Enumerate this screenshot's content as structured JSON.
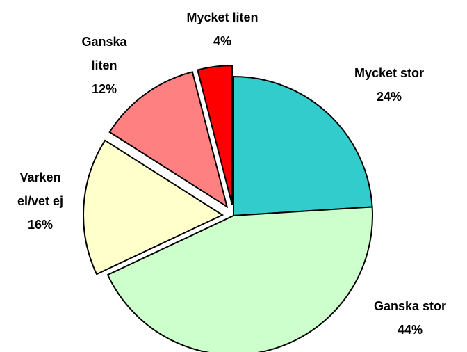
{
  "chart_data": {
    "type": "pie",
    "categories": [
      "Mycket stor",
      "Ganska stor",
      "Varken el/vet ej",
      "Ganska liten",
      "Mycket liten"
    ],
    "values": [
      24,
      44,
      16,
      12,
      4
    ],
    "value_labels": [
      "24%",
      "44%",
      "16%",
      "12%",
      "4%"
    ],
    "colors": [
      "#33CCCC",
      "#CCFFCC",
      "#FFFFCC",
      "#FF8080",
      "#FF0000"
    ]
  }
}
